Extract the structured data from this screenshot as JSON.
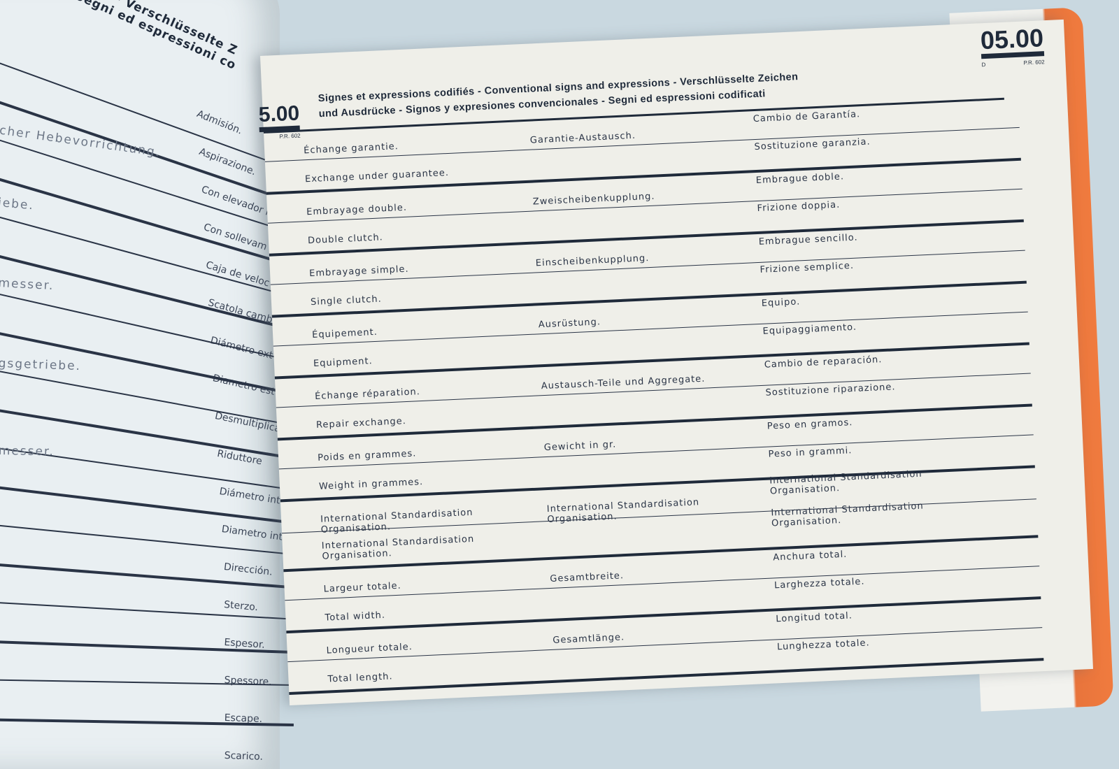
{
  "left_page": {
    "header_lines": [
      "ons - Verschlüsselte Z",
      "Segni ed espressioni co"
    ],
    "spanish_italian_column": [
      "Admisión.",
      "Aspirazione.",
      "Con elevador hi",
      "Con sollevam",
      "Caja de veloc",
      "Scatola camb",
      "Diámetro ext",
      "Diametro est",
      "Desmultiplicad",
      "Riduttore",
      "Diámetro int",
      "Diametro int",
      "Dirección.",
      "Sterzo.",
      "Espesor.",
      "Spessore.",
      "Escape.",
      "Scarico."
    ],
    "german_fragments": [
      "scher Hebevorrichtung.",
      "iebe.",
      "messer.",
      "gsgetriebe.",
      "messer."
    ],
    "page_code": "5.00",
    "page_ref": "P.R. 602"
  },
  "right_page": {
    "page_code": "05.00",
    "page_code_letter": "D",
    "page_ref": "P.R. 602",
    "title_line1": "Signes et expressions codifiés - Conventional signs and expressions - Verschlüsselte Zeichen",
    "title_line2": "und Ausdrücke - Signos y expresiones convencionales - Segni ed espressioni codificati",
    "rows": [
      {
        "fr": "Échange garantie.",
        "en": "Exchange under guarantee.",
        "de": "Garantie-Austausch.",
        "es": "Cambio de Garantía.",
        "it": "Sostituzione garanzia."
      },
      {
        "fr": "Embrayage double.",
        "en": "Double clutch.",
        "de": "Zweischeibenkupplung.",
        "es": "Embrague doble.",
        "it": "Frizione doppia."
      },
      {
        "fr": "Embrayage simple.",
        "en": "Single clutch.",
        "de": "Einscheibenkupplung.",
        "es": "Embrague sencillo.",
        "it": "Frizione semplice."
      },
      {
        "fr": "Équipement.",
        "en": "Equipment.",
        "de": "Ausrüstung.",
        "es": "Equipo.",
        "it": "Equipaggiamento."
      },
      {
        "fr": "Échange réparation.",
        "en": "Repair exchange.",
        "de": "Austausch-Teile und Aggregate.",
        "es": "Cambio de reparación.",
        "it": "Sostituzione riparazione."
      },
      {
        "fr": "Poids en grammes.",
        "en": "Weight in grammes.",
        "de": "Gewicht in gr.",
        "es": "Peso en gramos.",
        "it": "Peso in grammi."
      },
      {
        "fr": "International Standardisation Organisation.",
        "en": "International Standardisation Organisation.",
        "de": "International Standardisation Organisation.",
        "es": "International Standardisation Organisation.",
        "it": "International Standardisation Organisation."
      },
      {
        "fr": "Largeur totale.",
        "en": "Total width.",
        "de": "Gesamtbreite.",
        "es": "Anchura total.",
        "it": "Larghezza totale."
      },
      {
        "fr": "Longueur totale.",
        "en": "Total length.",
        "de": "Gesamtlänge.",
        "es": "Longitud total.",
        "it": "Lunghezza totale."
      }
    ]
  },
  "colors": {
    "ink": "#1f2a3a",
    "paper": "#efefe9",
    "edge_orange": "#f07b3e",
    "background": "#c9d8e0"
  }
}
